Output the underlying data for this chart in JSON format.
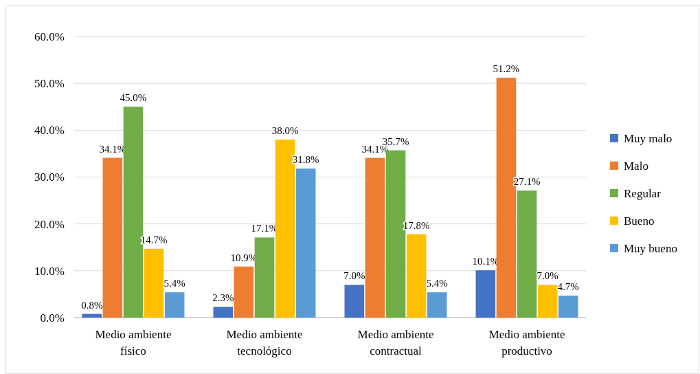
{
  "chart_data": {
    "type": "bar",
    "categories": [
      "Medio ambiente físico",
      "Medio ambiente tecnológico",
      "Medio ambiente contractual",
      "Medio ambiente productivo"
    ],
    "series": [
      {
        "name": "Muy malo",
        "color": "#4472c4",
        "values": [
          0.8,
          2.3,
          7.0,
          10.1
        ],
        "value_labels": [
          "0.8%",
          "2.3%",
          "7.0%",
          "10.1%"
        ]
      },
      {
        "name": "Malo",
        "color": "#ed7d31",
        "values": [
          34.1,
          10.9,
          34.1,
          51.2
        ],
        "value_labels": [
          "34.1%",
          "10.9%",
          "34.1%",
          "51.2%"
        ]
      },
      {
        "name": "Regular",
        "color": "#70ad47",
        "values": [
          45.0,
          17.1,
          35.7,
          27.1
        ],
        "value_labels": [
          "45.0%",
          "17.1%",
          "35.7%",
          "27.1%"
        ]
      },
      {
        "name": "Bueno",
        "color": "#ffc000",
        "values": [
          14.7,
          38.0,
          17.8,
          7.0
        ],
        "value_labels": [
          "14.7%",
          "38.0%",
          "17.8%",
          "7.0%"
        ]
      },
      {
        "name": "Muy bueno",
        "color": "#5b9bd5",
        "values": [
          5.4,
          31.8,
          5.4,
          4.7
        ],
        "value_labels": [
          "5.4%",
          "31.8%",
          "5.4%",
          "4.7%"
        ]
      }
    ],
    "ylim": [
      0,
      60
    ],
    "yticks": [
      {
        "value": 0,
        "label": "0.0%"
      },
      {
        "value": 10,
        "label": "10.0%"
      },
      {
        "value": 20,
        "label": "20.0%"
      },
      {
        "value": 30,
        "label": "30.0%"
      },
      {
        "value": 40,
        "label": "40.0%"
      },
      {
        "value": 50,
        "label": "50.0%"
      },
      {
        "value": 60,
        "label": "60.0%"
      }
    ],
    "grid": "y",
    "legend": "right"
  }
}
